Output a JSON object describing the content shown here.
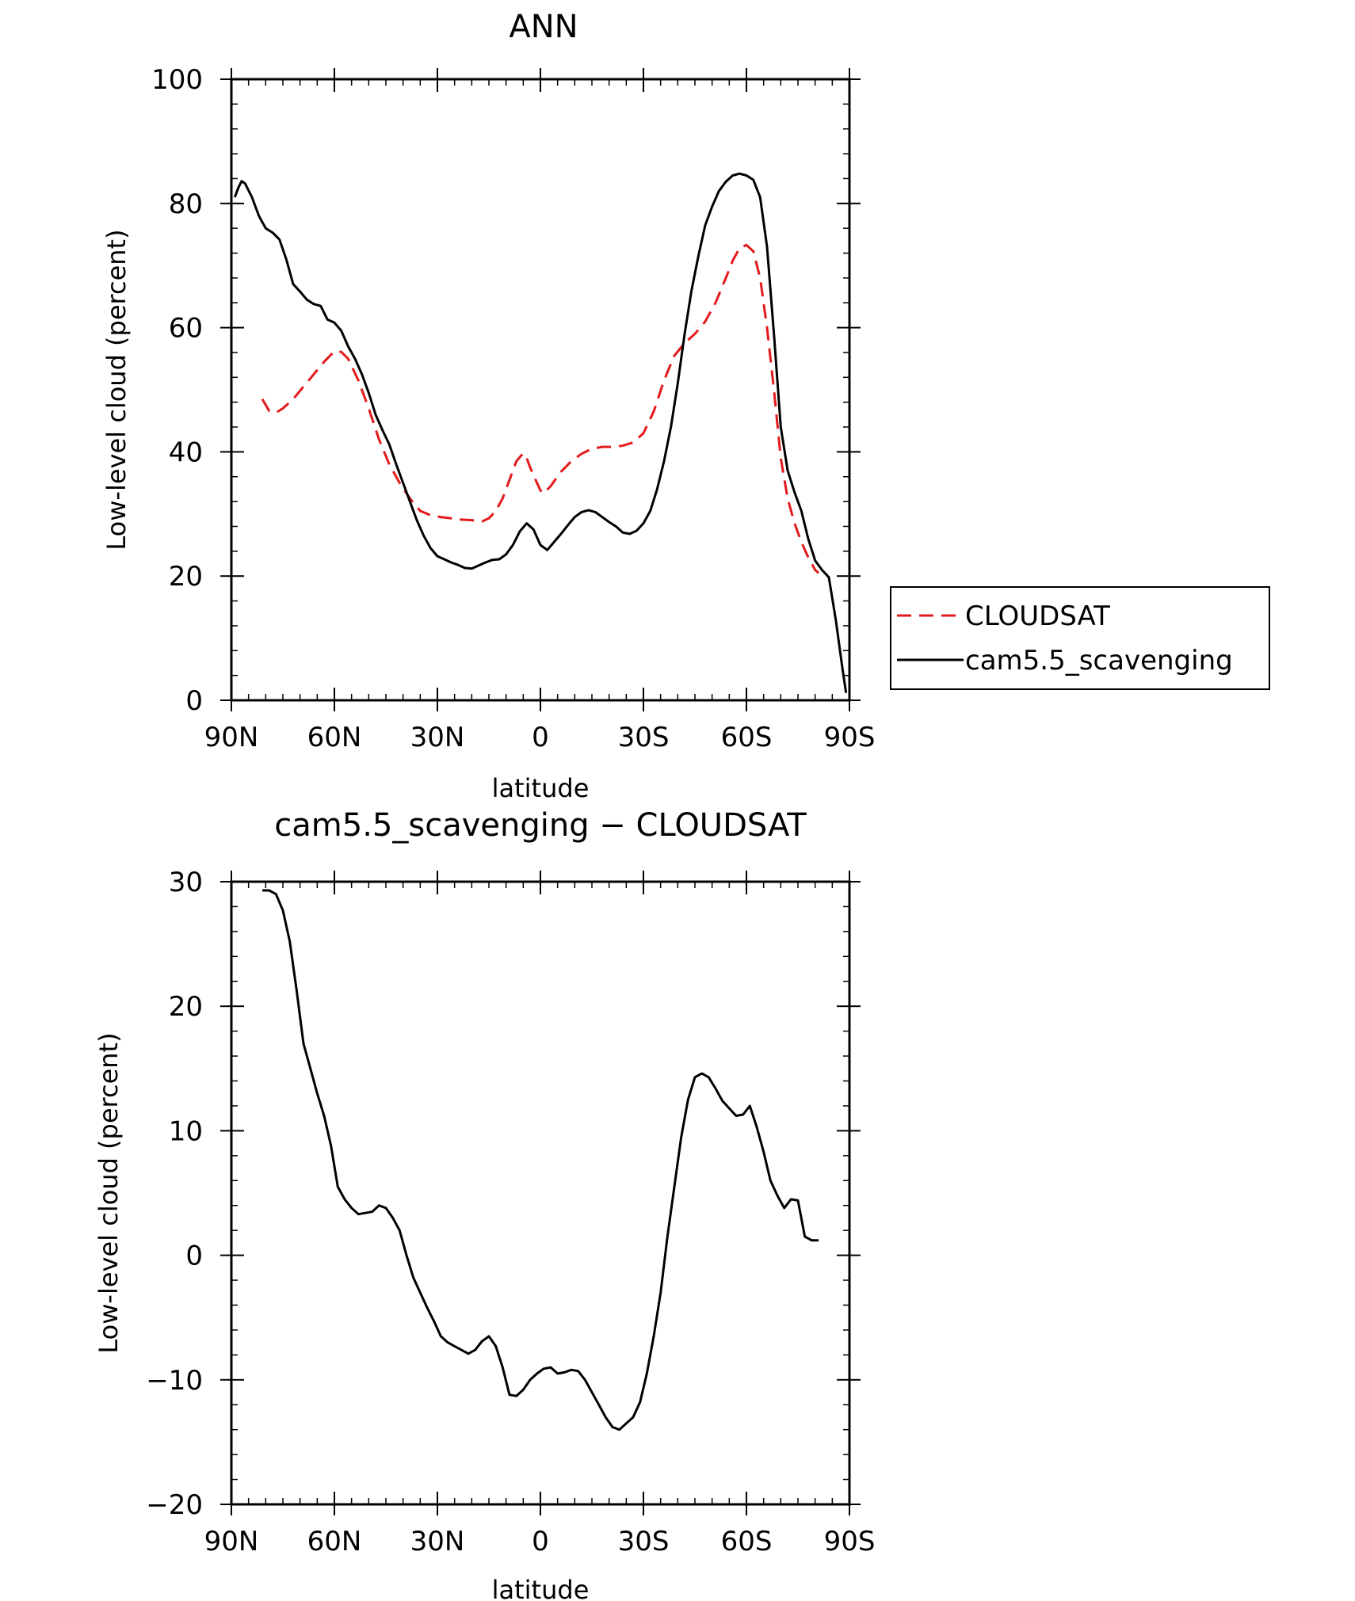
{
  "chart_data": [
    {
      "type": "line",
      "title": "ANN",
      "xlabel": "latitude",
      "ylabel": "Low-level cloud (percent)",
      "xlim": [
        90,
        -90
      ],
      "ylim": [
        0,
        100
      ],
      "x_ticks": [
        90,
        60,
        30,
        0,
        -30,
        -60,
        -90
      ],
      "x_tick_labels": [
        "90N",
        "60N",
        "30N",
        "0",
        "30S",
        "60S",
        "90S"
      ],
      "y_ticks": [
        0,
        20,
        40,
        60,
        80,
        100
      ],
      "y_tick_labels": [
        "0",
        "20",
        "40",
        "60",
        "80",
        "100"
      ],
      "legend": {
        "placement": "right of plot"
      },
      "series": [
        {
          "name": "CLOUDSAT",
          "color": "#e31a1c",
          "style": "dashed",
          "x": [
            81,
            79,
            77,
            75,
            72,
            69,
            66,
            63,
            60,
            58,
            56,
            53,
            50,
            47,
            44,
            41,
            38,
            35,
            32,
            29,
            26,
            23,
            20,
            17,
            15,
            13,
            11,
            9,
            7,
            5,
            4,
            3,
            1,
            0,
            -1,
            -3,
            -6,
            -9,
            -12,
            -15,
            -18,
            -21,
            -24,
            -27,
            -30,
            -33,
            -36,
            -39,
            -42,
            -45,
            -48,
            -51,
            -54,
            -56,
            -58,
            -60,
            -62,
            -64,
            -66,
            -68,
            -70,
            -72,
            -74,
            -76,
            -78,
            -80,
            -81
          ],
          "y": [
            48.5,
            46.6,
            46.3,
            47.0,
            48.5,
            50.5,
            52.5,
            54.5,
            56.2,
            56.1,
            55.0,
            51.5,
            47.0,
            42.0,
            38.0,
            35.0,
            32.5,
            30.5,
            29.8,
            29.5,
            29.3,
            29.1,
            29.0,
            28.8,
            29.3,
            30.5,
            32.5,
            35.5,
            38.5,
            39.8,
            39.0,
            37.5,
            35.0,
            33.8,
            33.3,
            34.5,
            36.8,
            38.5,
            39.7,
            40.5,
            40.8,
            40.8,
            41.0,
            41.5,
            43.0,
            46.5,
            51.5,
            55.5,
            57.5,
            59.0,
            61.0,
            64.0,
            68.0,
            70.8,
            72.8,
            73.3,
            72.3,
            68.0,
            60.0,
            50.0,
            39.0,
            32.5,
            28.5,
            25.5,
            23.0,
            21.0,
            20.5
          ]
        },
        {
          "name": "cam5.5_scavenging",
          "color": "#000000",
          "style": "solid",
          "x": [
            89,
            88,
            87,
            86,
            84,
            82,
            80,
            78,
            76,
            74,
            72,
            70,
            68,
            66,
            64,
            62,
            60,
            58,
            56,
            54,
            52,
            50,
            48,
            46,
            44,
            42,
            40,
            38,
            36,
            34,
            32,
            30,
            28,
            26,
            24,
            22,
            20,
            18,
            16,
            14,
            12,
            10,
            8,
            6,
            4,
            2,
            0,
            -2,
            -4,
            -6,
            -8,
            -10,
            -12,
            -14,
            -16,
            -18,
            -20,
            -22,
            -24,
            -26,
            -28,
            -30,
            -32,
            -34,
            -36,
            -38,
            -40,
            -42,
            -44,
            -46,
            -48,
            -50,
            -52,
            -54,
            -56,
            -58,
            -60,
            -62,
            -64,
            -66,
            -68,
            -70,
            -72,
            -74,
            -76,
            -78,
            -80,
            -82,
            -84,
            -86,
            -88,
            -89
          ],
          "y": [
            81.0,
            82.5,
            83.6,
            83.2,
            81.0,
            78.0,
            76.0,
            75.3,
            74.2,
            71.0,
            67.0,
            65.8,
            64.5,
            63.8,
            63.5,
            61.3,
            60.8,
            59.5,
            57.0,
            55.0,
            52.5,
            49.5,
            46.0,
            43.5,
            41.2,
            38.0,
            35.0,
            32.0,
            29.0,
            26.5,
            24.5,
            23.2,
            22.7,
            22.2,
            21.8,
            21.3,
            21.2,
            21.7,
            22.2,
            22.6,
            22.7,
            23.5,
            25.0,
            27.2,
            28.5,
            27.5,
            25.0,
            24.2,
            25.5,
            26.8,
            28.2,
            29.5,
            30.3,
            30.6,
            30.3,
            29.5,
            28.7,
            28.0,
            27.0,
            26.8,
            27.3,
            28.5,
            30.5,
            34.0,
            38.5,
            44.0,
            51.0,
            59.0,
            66.0,
            71.5,
            76.5,
            79.5,
            82.0,
            83.5,
            84.5,
            84.8,
            84.5,
            83.8,
            81.0,
            73.0,
            59.0,
            44.0,
            37.0,
            33.5,
            30.5,
            26.0,
            22.5,
            21.0,
            19.8,
            13.0,
            5.0,
            1.2
          ]
        }
      ]
    },
    {
      "type": "line",
      "title": "cam5.5_scavenging − CLOUDSAT",
      "xlabel": "latitude",
      "ylabel": "Low-level cloud (percent)",
      "xlim": [
        90,
        -90
      ],
      "ylim": [
        -20,
        30
      ],
      "x_ticks": [
        90,
        60,
        30,
        0,
        -30,
        -60,
        -90
      ],
      "x_tick_labels": [
        "90N",
        "60N",
        "30N",
        "0",
        "30S",
        "60S",
        "90S"
      ],
      "y_ticks": [
        -20,
        -10,
        0,
        10,
        20,
        30
      ],
      "y_tick_labels": [
        "−20",
        "−10",
        "0",
        "10",
        "20",
        "30"
      ],
      "series": [
        {
          "color": "#000000",
          "style": "solid",
          "x": [
            81,
            79,
            77,
            75,
            73,
            71,
            69,
            67,
            65,
            63,
            61,
            59,
            57,
            55,
            53,
            51,
            49,
            47,
            45,
            43,
            41,
            39,
            37,
            35,
            33,
            31,
            29,
            27,
            25,
            23,
            21,
            19,
            17,
            15,
            13,
            11,
            9,
            7,
            5,
            3,
            1,
            -1,
            -3,
            -5,
            -7,
            -9,
            -11,
            -13,
            -15,
            -17,
            -19,
            -21,
            -23,
            -25,
            -27,
            -29,
            -31,
            -33,
            -35,
            -37,
            -39,
            -41,
            -43,
            -45,
            -47,
            -49,
            -51,
            -53,
            -55,
            -57,
            -59,
            -61,
            -63,
            -65,
            -67,
            -69,
            -71,
            -73,
            -75,
            -77,
            -79,
            -81
          ],
          "y": [
            29.3,
            29.3,
            29.0,
            27.7,
            25.2,
            21.3,
            17.0,
            15.0,
            13.0,
            11.2,
            8.8,
            5.5,
            4.5,
            3.8,
            3.3,
            3.4,
            3.5,
            4.0,
            3.8,
            3.0,
            2.0,
            0.0,
            -1.8,
            -3.0,
            -4.2,
            -5.3,
            -6.5,
            -7.0,
            -7.3,
            -7.6,
            -7.9,
            -7.6,
            -6.9,
            -6.5,
            -7.3,
            -9.0,
            -11.2,
            -11.3,
            -10.8,
            -10.0,
            -9.5,
            -9.1,
            -9.0,
            -9.5,
            -9.4,
            -9.2,
            -9.3,
            -10.0,
            -11.0,
            -12.0,
            -13.0,
            -13.8,
            -14.0,
            -13.5,
            -13.0,
            -11.8,
            -9.5,
            -6.5,
            -3.0,
            1.5,
            5.5,
            9.5,
            12.5,
            14.3,
            14.6,
            14.3,
            13.4,
            12.4,
            11.8,
            11.2,
            11.3,
            12.0,
            10.3,
            8.3,
            6.0,
            4.8,
            3.8,
            4.5,
            4.4,
            1.5,
            1.2,
            1.2
          ]
        }
      ]
    }
  ]
}
